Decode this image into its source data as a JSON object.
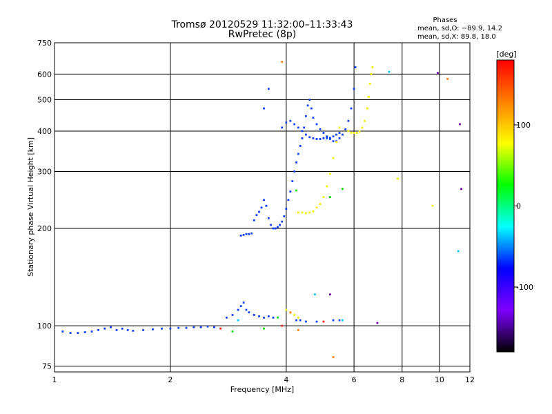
{
  "chart_data": {
    "type": "scatter",
    "title": "Tromsø 20120529 11:32:00–11:33:43",
    "subtitle": "RwPretec (8p)",
    "xlabel": "Frequency [MHz]",
    "ylabel": "Stationary phase Virtual Height [km]",
    "x_scale": "log",
    "y_scale": "log",
    "xlim": [
      1,
      12
    ],
    "ylim": [
      72,
      750
    ],
    "grid": true,
    "x_ticks": [
      1,
      2,
      4,
      6,
      8,
      10,
      12
    ],
    "y_ticks": [
      75,
      100,
      200,
      300,
      400,
      500,
      600,
      750
    ],
    "phases_box": {
      "heading": "Phases",
      "line1": "mean, sd,O: −89.9, 14.2",
      "line2": "mean, sd,X:  89.8, 18.0"
    },
    "colorbar": {
      "label": "[deg]",
      "range": [
        -180,
        180
      ],
      "ticks": [
        100,
        0,
        -100
      ],
      "colors": [
        "#ff0000",
        "#ff8000",
        "#ffff00",
        "#00ff00",
        "#00ffff",
        "#0000ff",
        "#8000ff",
        "#000000"
      ]
    },
    "series": [
      {
        "phase_deg": -100,
        "color": "#1040ff",
        "points": [
          [
            1.05,
            96
          ],
          [
            1.1,
            95
          ],
          [
            1.15,
            95
          ],
          [
            1.2,
            95.5
          ],
          [
            1.25,
            96
          ],
          [
            1.3,
            97
          ],
          [
            1.35,
            98
          ],
          [
            1.4,
            99
          ],
          [
            1.45,
            97
          ],
          [
            1.5,
            98
          ],
          [
            1.55,
            97
          ],
          [
            1.6,
            96.5
          ],
          [
            1.7,
            97
          ],
          [
            1.8,
            97.5
          ],
          [
            1.9,
            98
          ],
          [
            2.0,
            98
          ],
          [
            2.1,
            98.5
          ],
          [
            2.2,
            98.5
          ],
          [
            2.3,
            99
          ],
          [
            2.4,
            99
          ],
          [
            2.5,
            99.5
          ],
          [
            2.6,
            99
          ],
          [
            2.8,
            106
          ],
          [
            2.9,
            108
          ],
          [
            3.0,
            112
          ],
          [
            3.05,
            115
          ],
          [
            3.1,
            118
          ],
          [
            3.15,
            112
          ],
          [
            3.2,
            110
          ],
          [
            3.3,
            108
          ],
          [
            3.4,
            107
          ],
          [
            3.5,
            106
          ],
          [
            3.6,
            107
          ],
          [
            3.7,
            106
          ],
          [
            3.05,
            190
          ],
          [
            3.1,
            191
          ],
          [
            3.15,
            192
          ],
          [
            3.2,
            192
          ],
          [
            3.25,
            193
          ],
          [
            3.3,
            212
          ],
          [
            3.35,
            220
          ],
          [
            3.4,
            225
          ],
          [
            3.45,
            232
          ],
          [
            3.5,
            245
          ],
          [
            3.55,
            235
          ],
          [
            3.6,
            215
          ],
          [
            3.65,
            205
          ],
          [
            3.7,
            200
          ],
          [
            3.75,
            200
          ],
          [
            3.8,
            202
          ],
          [
            3.85,
            205
          ],
          [
            3.9,
            210
          ],
          [
            3.95,
            218
          ],
          [
            4.0,
            230
          ],
          [
            4.05,
            245
          ],
          [
            4.1,
            260
          ],
          [
            4.15,
            280
          ],
          [
            4.2,
            300
          ],
          [
            4.25,
            320
          ],
          [
            4.3,
            340
          ],
          [
            4.35,
            360
          ],
          [
            4.4,
            380
          ],
          [
            4.45,
            410
          ],
          [
            4.5,
            445
          ],
          [
            4.55,
            480
          ],
          [
            4.6,
            500
          ],
          [
            4.65,
            470
          ],
          [
            4.7,
            440
          ],
          [
            4.8,
            420
          ],
          [
            4.9,
            405
          ],
          [
            5.0,
            395
          ],
          [
            5.1,
            385
          ],
          [
            5.2,
            378
          ],
          [
            5.3,
            372
          ],
          [
            5.4,
            372
          ],
          [
            5.5,
            380
          ],
          [
            5.6,
            390
          ],
          [
            5.7,
            405
          ],
          [
            5.8,
            430
          ],
          [
            5.9,
            470
          ],
          [
            6.0,
            540
          ],
          [
            6.05,
            630
          ],
          [
            3.9,
            410
          ],
          [
            4.0,
            425
          ],
          [
            4.1,
            430
          ],
          [
            4.2,
            420
          ],
          [
            4.3,
            410
          ],
          [
            4.4,
            400
          ],
          [
            4.5,
            390
          ],
          [
            4.6,
            383
          ],
          [
            4.7,
            380
          ],
          [
            4.8,
            378
          ],
          [
            4.9,
            378
          ],
          [
            5.0,
            380
          ],
          [
            5.1,
            380
          ],
          [
            5.2,
            381
          ],
          [
            5.3,
            385
          ],
          [
            5.4,
            390
          ],
          [
            5.5,
            395
          ],
          [
            3.5,
            470
          ],
          [
            3.6,
            540
          ],
          [
            4.25,
            104
          ],
          [
            4.35,
            104
          ],
          [
            4.5,
            103
          ],
          [
            4.8,
            103
          ],
          [
            5.3,
            104
          ],
          [
            5.5,
            104
          ]
        ]
      },
      {
        "phase_deg": 100,
        "color": "#f0f000",
        "points": [
          [
            4.0,
            112
          ],
          [
            4.1,
            110
          ],
          [
            4.2,
            108
          ],
          [
            4.3,
            106
          ],
          [
            4.3,
            224
          ],
          [
            4.4,
            224
          ],
          [
            4.5,
            223
          ],
          [
            4.6,
            224
          ],
          [
            4.7,
            226
          ],
          [
            4.8,
            232
          ],
          [
            4.9,
            238
          ],
          [
            5.0,
            250
          ],
          [
            5.1,
            270
          ],
          [
            5.2,
            295
          ],
          [
            5.3,
            330
          ],
          [
            5.4,
            370
          ],
          [
            5.5,
            410
          ],
          [
            5.8,
            400
          ],
          [
            5.9,
            395
          ],
          [
            6.0,
            395
          ],
          [
            6.1,
            395
          ],
          [
            6.2,
            398
          ],
          [
            6.3,
            410
          ],
          [
            6.4,
            430
          ],
          [
            6.5,
            470
          ],
          [
            6.55,
            510
          ],
          [
            6.6,
            560
          ],
          [
            6.65,
            600
          ],
          [
            6.7,
            630
          ],
          [
            7.8,
            285
          ],
          [
            9.6,
            235
          ]
        ]
      },
      {
        "phase_deg": 0,
        "color": "#00e000",
        "points": [
          [
            2.9,
            96
          ],
          [
            3.5,
            98
          ],
          [
            4.25,
            262
          ],
          [
            5.2,
            250
          ],
          [
            5.6,
            265
          ],
          [
            3.8,
            106
          ]
        ]
      },
      {
        "phase_deg": 30,
        "color": "#00c8ff",
        "points": [
          [
            7.4,
            610
          ],
          [
            11.2,
            170
          ],
          [
            3.0,
            104
          ],
          [
            5.6,
            104
          ],
          [
            4.75,
            125
          ]
        ]
      },
      {
        "phase_deg": 150,
        "color": "#ff8000",
        "points": [
          [
            3.9,
            655
          ],
          [
            5.3,
            80
          ],
          [
            4.3,
            97
          ],
          [
            4.1,
            110
          ],
          [
            10.5,
            580
          ]
        ]
      },
      {
        "phase_deg": 180,
        "color": "#ff2020",
        "points": [
          [
            5.0,
            103
          ],
          [
            2.7,
            98
          ],
          [
            3.9,
            100
          ]
        ]
      },
      {
        "phase_deg": -160,
        "color": "#7000b0",
        "points": [
          [
            6.9,
            102
          ],
          [
            5.2,
            125
          ],
          [
            11.3,
            420
          ],
          [
            11.4,
            265
          ],
          [
            9.9,
            605
          ]
        ]
      }
    ]
  }
}
